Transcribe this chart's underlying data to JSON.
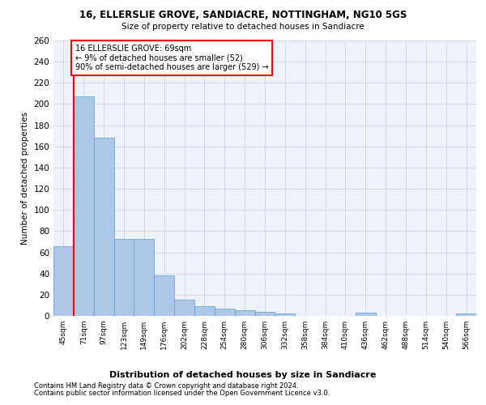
{
  "title1": "16, ELLERSLIE GROVE, SANDIACRE, NOTTINGHAM, NG10 5GS",
  "title2": "Size of property relative to detached houses in Sandiacre",
  "xlabel": "Distribution of detached houses by size in Sandiacre",
  "ylabel": "Number of detached properties",
  "bar_labels": [
    "45sqm",
    "71sqm",
    "97sqm",
    "123sqm",
    "149sqm",
    "176sqm",
    "202sqm",
    "228sqm",
    "254sqm",
    "280sqm",
    "306sqm",
    "332sqm",
    "358sqm",
    "384sqm",
    "410sqm",
    "436sqm",
    "462sqm",
    "488sqm",
    "514sqm",
    "540sqm",
    "566sqm"
  ],
  "bar_values": [
    66,
    207,
    168,
    73,
    73,
    38,
    15,
    9,
    7,
    5,
    4,
    2,
    0,
    0,
    0,
    3,
    0,
    0,
    0,
    0,
    2
  ],
  "bar_color": "#aec6e8",
  "bar_edge_color": "#5a9fd4",
  "annotation_text": "16 ELLERSLIE GROVE: 69sqm\n← 9% of detached houses are smaller (52)\n90% of semi-detached houses are larger (529) →",
  "annotation_box_color": "white",
  "annotation_box_edge": "red",
  "red_line_color": "red",
  "grid_color": "#d0d8e8",
  "bg_color": "#eef2fa",
  "footer1": "Contains HM Land Registry data © Crown copyright and database right 2024.",
  "footer2": "Contains public sector information licensed under the Open Government Licence v3.0.",
  "ylim": [
    0,
    260
  ],
  "yticks": [
    0,
    20,
    40,
    60,
    80,
    100,
    120,
    140,
    160,
    180,
    200,
    220,
    240,
    260
  ],
  "red_line_x": 0.5
}
